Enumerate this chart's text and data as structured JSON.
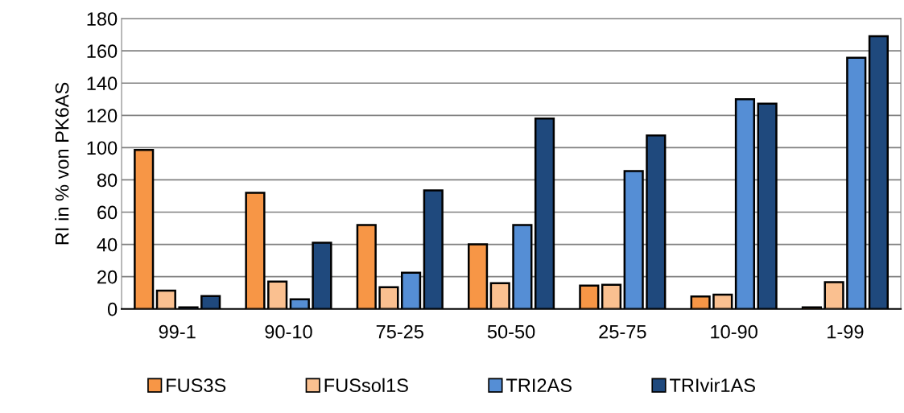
{
  "chart_data": {
    "type": "bar",
    "ylabel": "RI in % von PK6AS",
    "categories": [
      "99-1",
      "90-10",
      "75-25",
      "50-50",
      "25-75",
      "10-90",
      "1-99"
    ],
    "series": [
      {
        "name": "FUS3S",
        "color": "#f79646",
        "values": [
          98.5,
          72,
          52,
          40,
          14.5,
          7.7,
          1
        ]
      },
      {
        "name": "FUSsol1S",
        "color": "#fac090",
        "values": [
          11.4,
          17,
          13.5,
          16,
          15,
          8.8,
          16.6
        ]
      },
      {
        "name": "TRI2AS",
        "color": "#558ed5",
        "values": [
          1,
          6,
          22.5,
          52,
          85.5,
          130,
          155.7
        ]
      },
      {
        "name": "TRIvir1AS",
        "color": "#1f497d",
        "values": [
          8,
          41,
          73.5,
          118,
          107.5,
          127.3,
          169
        ]
      }
    ],
    "ylim": [
      0,
      180
    ],
    "yticks": [
      0,
      20,
      40,
      60,
      80,
      100,
      120,
      140,
      160,
      180
    ],
    "grid": "y",
    "legend": "bottom"
  }
}
